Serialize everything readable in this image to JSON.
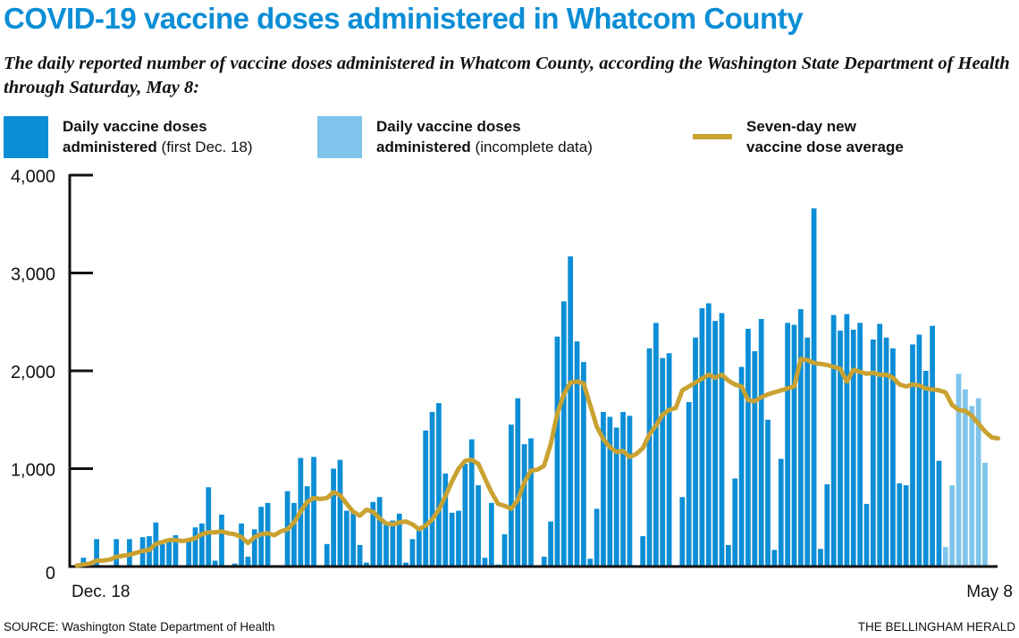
{
  "header": {
    "title": "COVID-19 vaccine doses administered in Whatcom County",
    "subtitle": "The daily reported number of vaccine doses administered in Whatcom County, according the Washington State Department of Health through Saturday, May 8:"
  },
  "legend": [
    {
      "line1": "Daily vaccine doses",
      "bold2": "administered",
      "rest2": " (first Dec. 18)",
      "color": "#0b8ed6"
    },
    {
      "line1": "Daily vaccine doses",
      "bold2": "administered",
      "rest2": " (incomplete data)",
      "color": "#7fc4ea"
    },
    {
      "line1": "Seven-day new",
      "bold2": "vaccine dose average",
      "rest2": "",
      "color": "#c9a232"
    }
  ],
  "footer": {
    "source": "SOURCE: Washington State Department of Health",
    "credit": "THE BELLINGHAM HERALD"
  },
  "chart_data": {
    "type": "bar",
    "title": "COVID-19 vaccine doses administered in Whatcom County",
    "xlabel": "",
    "ylabel": "",
    "ylim": [
      0,
      4000
    ],
    "yticks": [
      0,
      1000,
      2000,
      3000,
      4000
    ],
    "ytick_labels": [
      "0",
      "1,000",
      "2,000",
      "3,000",
      "4,000"
    ],
    "x_start_label": "Dec. 18",
    "x_end_label": "May 8",
    "grid": false,
    "legend_position": "top",
    "colors": {
      "complete": "#0b8ed6",
      "incomplete": "#7fc4ea",
      "average": "#c9a232",
      "axis": "#111111"
    },
    "series": [
      {
        "name": "Daily vaccine doses administered (first Dec. 18)",
        "type": "bar",
        "values": [
          0,
          90,
          0,
          280,
          0,
          0,
          280,
          0,
          280,
          0,
          300,
          310,
          450,
          230,
          260,
          320,
          0,
          280,
          400,
          440,
          810,
          60,
          530,
          0,
          30,
          440,
          100,
          380,
          610,
          650,
          0,
          0,
          770,
          650,
          1110,
          820,
          1120,
          0,
          230,
          1000,
          1090,
          570,
          560,
          220,
          40,
          660,
          710,
          450,
          470,
          540,
          40,
          280,
          380,
          1390,
          1580,
          1670,
          950,
          550,
          570,
          1050,
          1300,
          830,
          90,
          650,
          20,
          330,
          1450,
          1720,
          1250,
          1310,
          0,
          100,
          460,
          2350,
          2710,
          3170,
          2300,
          2090,
          80,
          590,
          1580,
          1530,
          1420,
          1580,
          1540,
          0,
          310,
          2230,
          2490,
          2130,
          2180,
          0,
          710,
          1680,
          2340,
          2640,
          2690,
          2510,
          2590,
          220,
          900,
          2040,
          2430,
          2200,
          2530,
          1500,
          170,
          1100,
          2490,
          2470,
          2630,
          2340,
          3660,
          180,
          840,
          2570,
          2410,
          2580,
          2420,
          2490,
          640,
          2320,
          2480,
          2340,
          2230,
          850,
          830,
          2270,
          2370,
          2000,
          2460,
          1080
        ]
      },
      {
        "name": "Daily vaccine doses administered (incomplete data)",
        "type": "bar",
        "values": [
          200,
          830,
          1970,
          1810,
          1640,
          1720,
          1060
        ]
      },
      {
        "name": "Seven-day new vaccine dose average",
        "type": "line",
        "values": [
          10,
          20,
          30,
          60,
          60,
          70,
          100,
          110,
          120,
          140,
          160,
          170,
          230,
          250,
          270,
          270,
          260,
          270,
          290,
          330,
          350,
          350,
          360,
          340,
          330,
          300,
          240,
          300,
          330,
          340,
          320,
          360,
          380,
          450,
          560,
          660,
          700,
          690,
          700,
          760,
          730,
          640,
          560,
          520,
          580,
          560,
          490,
          440,
          430,
          450,
          460,
          430,
          380,
          420,
          480,
          580,
          720,
          870,
          1000,
          1080,
          1090,
          1050,
          900,
          760,
          640,
          620,
          590,
          680,
          860,
          980,
          990,
          1030,
          1250,
          1560,
          1760,
          1880,
          1890,
          1870,
          1650,
          1430,
          1300,
          1220,
          1170,
          1180,
          1120,
          1150,
          1210,
          1350,
          1440,
          1550,
          1600,
          1620,
          1800,
          1840,
          1880,
          1920,
          1960,
          1930,
          1960,
          1900,
          1860,
          1840,
          1700,
          1690,
          1730,
          1760,
          1780,
          1800,
          1820,
          1840,
          2120,
          2110,
          2080,
          2070,
          2060,
          2040,
          2020,
          1890,
          2010,
          1990,
          1970,
          1980,
          1960,
          1960,
          1930,
          1860,
          1840,
          1860,
          1850,
          1820,
          1810,
          1800,
          1780,
          1650,
          1600,
          1590,
          1540,
          1460,
          1380,
          1320,
          1310
        ]
      }
    ]
  }
}
